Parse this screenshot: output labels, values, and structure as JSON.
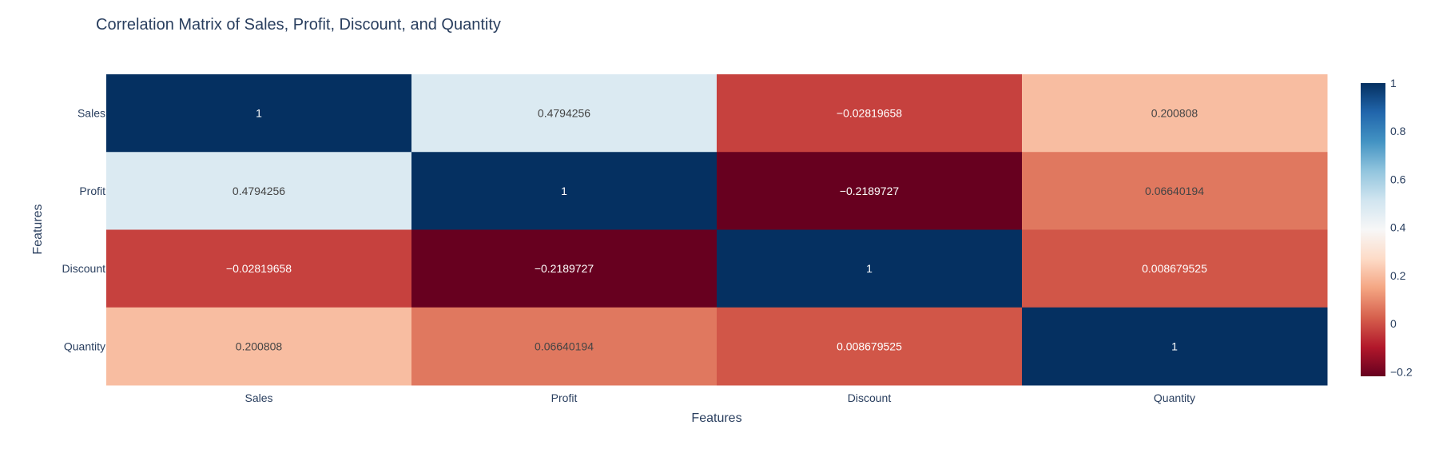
{
  "chart_data": {
    "type": "heatmap",
    "title": "Correlation Matrix of Sales, Profit, Discount, and Quantity",
    "xlabel": "Features",
    "ylabel": "Features",
    "x_categories": [
      "Sales",
      "Profit",
      "Discount",
      "Quantity"
    ],
    "y_categories": [
      "Sales",
      "Profit",
      "Discount",
      "Quantity"
    ],
    "values": [
      [
        1,
        0.4794256,
        -0.02819658,
        0.200808
      ],
      [
        0.4794256,
        1,
        -0.2189727,
        0.06640194
      ],
      [
        -0.02819658,
        -0.2189727,
        1,
        0.008679525
      ],
      [
        0.200808,
        0.06640194,
        0.008679525,
        1
      ]
    ],
    "value_labels": [
      [
        "1",
        "0.4794256",
        "−0.02819658",
        "0.200808"
      ],
      [
        "0.4794256",
        "1",
        "−0.2189727",
        "0.06640194"
      ],
      [
        "−0.02819658",
        "−0.2189727",
        "1",
        "0.008679525"
      ],
      [
        "0.200808",
        "0.06640194",
        "0.008679525",
        "1"
      ]
    ],
    "colorscale": "RdBu",
    "zrange": [
      -0.2189727,
      1
    ],
    "colorbar_ticks": [
      1,
      0.8,
      0.6,
      0.4,
      0.2,
      0,
      -0.2
    ],
    "colorbar_tick_labels": [
      "1",
      "0.8",
      "0.6",
      "0.4",
      "0.2",
      "0",
      "−0.2"
    ],
    "colorscale_stops": [
      [
        0,
        "#67001f"
      ],
      [
        0.1,
        "#b2182b"
      ],
      [
        0.2,
        "#d6604d"
      ],
      [
        0.3,
        "#f4a582"
      ],
      [
        0.4,
        "#fddbc7"
      ],
      [
        0.5,
        "#f7f7f7"
      ],
      [
        0.6,
        "#d1e5f0"
      ],
      [
        0.7,
        "#92c5de"
      ],
      [
        0.8,
        "#4393c3"
      ],
      [
        0.9,
        "#2166ac"
      ],
      [
        1,
        "#053061"
      ]
    ],
    "grid": false
  }
}
